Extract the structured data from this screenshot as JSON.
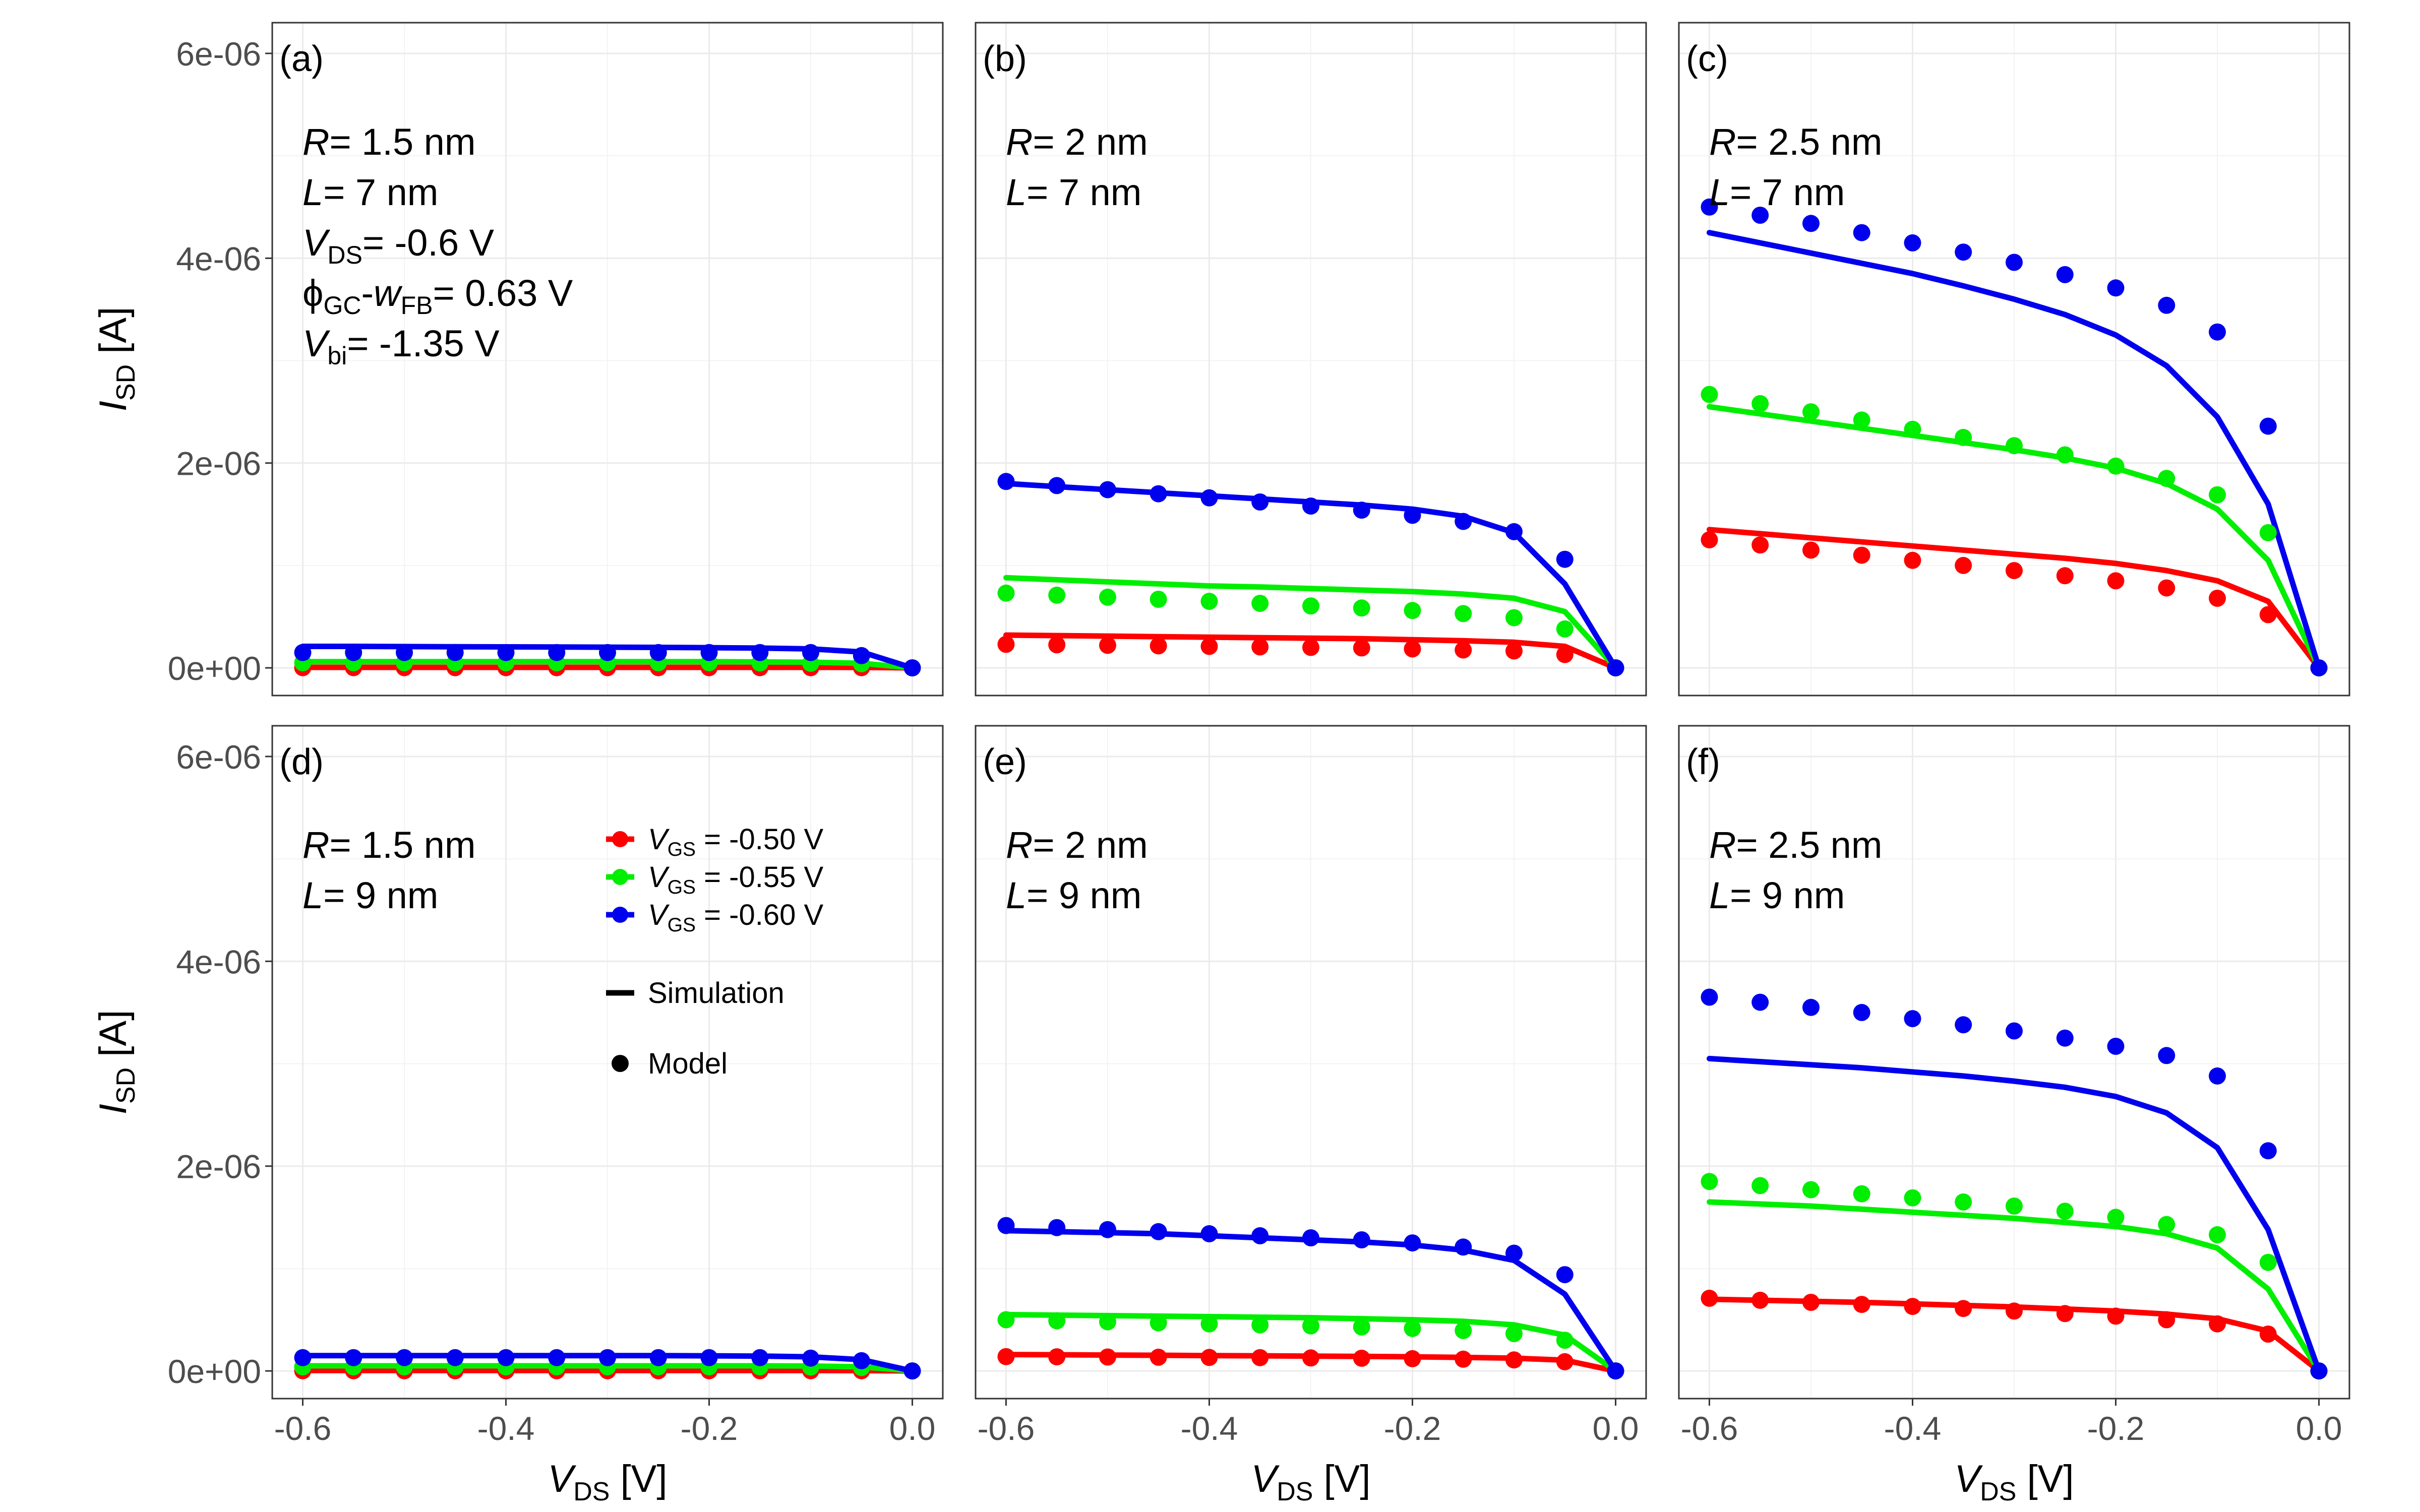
{
  "figure": {
    "y_axis_label": {
      "main": "I",
      "sub": "SD",
      "rest": " [A]"
    },
    "x_axis_label": {
      "main": "V",
      "sub": "DS",
      "rest": " [V]"
    },
    "y_ticks": [
      {
        "value": 0,
        "label": "0e+00"
      },
      {
        "value": 2e-06,
        "label": "2e-06"
      },
      {
        "value": 4e-06,
        "label": "4e-06"
      },
      {
        "value": 6e-06,
        "label": "6e-06"
      }
    ],
    "x_ticks": [
      {
        "value": -0.6,
        "label": "-0.6"
      },
      {
        "value": -0.4,
        "label": "-0.4"
      },
      {
        "value": -0.2,
        "label": "-0.2"
      },
      {
        "value": 0.0,
        "label": "0.0"
      }
    ],
    "legend": {
      "entries": [
        {
          "series": "vgs_050",
          "label": "= -0.50 V"
        },
        {
          "series": "vgs_055",
          "label": "= -0.55 V"
        },
        {
          "series": "vgs_060",
          "label": "= -0.60 V"
        }
      ],
      "entry_var": {
        "main": "V",
        "sub": "GS"
      },
      "simulation_label": "Simulation",
      "model_label": "Model"
    },
    "colors": {
      "vgs_050": "#ff0000",
      "vgs_055": "#00ee00",
      "vgs_060": "#0000ee",
      "grid": "#ebebeb",
      "frame": "#333333",
      "tick_text": "#4d4d4d"
    }
  },
  "chart_data": {
    "type": "line",
    "xlim": [
      -0.63,
      0.03
    ],
    "ylim": [
      -2.7e-07,
      6.3e-06
    ],
    "x": [
      -0.6,
      -0.55,
      -0.5,
      -0.45,
      -0.4,
      -0.35,
      -0.3,
      -0.25,
      -0.2,
      -0.15,
      -0.1,
      -0.05,
      0.0
    ],
    "grid": true,
    "legend_position": "inside panel (d), upper-right",
    "panels": [
      {
        "tag": "(a)",
        "params": [
          {
            "main": "R",
            "sub": "",
            "rest": "= 1.5 nm"
          },
          {
            "main": "L",
            "sub": "",
            "rest": "= 7 nm"
          },
          {
            "main": "V",
            "sub": "DS",
            "rest": "= -0.6 V"
          },
          {
            "main": "ϕ",
            "sub": "GC",
            "mid": "-w",
            "sub2": "FB",
            "rest": "= 0.63 V"
          },
          {
            "main": "V",
            "sub": "bi",
            "rest": "= -1.35 V"
          }
        ],
        "series": [
          {
            "key": "vgs_050",
            "name": "V_GS = -0.50 V",
            "simulation": [
              5e-09,
              5e-09,
              5e-09,
              5e-09,
              5e-09,
              5e-09,
              5e-09,
              5e-09,
              5e-09,
              5e-09,
              5e-09,
              4e-09,
              0
            ],
            "model": [
              2e-09,
              2e-09,
              2e-09,
              2e-09,
              2e-09,
              2e-09,
              2e-09,
              2e-09,
              2e-09,
              2e-09,
              2e-09,
              2e-09,
              0
            ]
          },
          {
            "key": "vgs_055",
            "name": "V_GS = -0.55 V",
            "simulation": [
              6e-08,
              6e-08,
              6e-08,
              6e-08,
              6e-08,
              6e-08,
              6e-08,
              6e-08,
              6e-08,
              5.8e-08,
              5.5e-08,
              4.5e-08,
              0
            ],
            "model": [
              5e-08,
              5e-08,
              5e-08,
              5e-08,
              5e-08,
              5e-08,
              5e-08,
              5e-08,
              5e-08,
              4.8e-08,
              4.5e-08,
              4e-08,
              0
            ]
          },
          {
            "key": "vgs_060",
            "name": "V_GS = -0.60 V",
            "simulation": [
              2.1e-07,
              2.1e-07,
              2.08e-07,
              2.06e-07,
              2.05e-07,
              2.04e-07,
              2.02e-07,
              2e-07,
              1.97e-07,
              1.93e-07,
              1.85e-07,
              1.55e-07,
              0
            ],
            "model": [
              1.5e-07,
              1.5e-07,
              1.5e-07,
              1.5e-07,
              1.5e-07,
              1.5e-07,
              1.5e-07,
              1.5e-07,
              1.5e-07,
              1.5e-07,
              1.5e-07,
              1.2e-07,
              0
            ]
          }
        ]
      },
      {
        "tag": "(b)",
        "params": [
          {
            "main": "R",
            "sub": "",
            "rest": "= 2 nm"
          },
          {
            "main": "L",
            "sub": "",
            "rest": "= 7 nm"
          }
        ],
        "series": [
          {
            "key": "vgs_050",
            "name": "V_GS = -0.50 V",
            "simulation": [
              3.2e-07,
              3.15e-07,
              3.1e-07,
              3.05e-07,
              3e-07,
              2.95e-07,
              2.9e-07,
              2.85e-07,
              2.75e-07,
              2.65e-07,
              2.5e-07,
              2.1e-07,
              0
            ],
            "model": [
              2.3e-07,
              2.25e-07,
              2.2e-07,
              2.15e-07,
              2.1e-07,
              2.05e-07,
              2e-07,
              1.95e-07,
              1.85e-07,
              1.75e-07,
              1.65e-07,
              1.3e-07,
              0
            ]
          },
          {
            "key": "vgs_055",
            "name": "V_GS = -0.55 V",
            "simulation": [
              8.8e-07,
              8.6e-07,
              8.4e-07,
              8.2e-07,
              8e-07,
              7.9e-07,
              7.75e-07,
              7.6e-07,
              7.45e-07,
              7.2e-07,
              6.8e-07,
              5.5e-07,
              0
            ],
            "model": [
              7.3e-07,
              7.1e-07,
              6.9e-07,
              6.7e-07,
              6.5e-07,
              6.3e-07,
              6.05e-07,
              5.85e-07,
              5.6e-07,
              5.3e-07,
              4.9e-07,
              3.8e-07,
              0
            ]
          },
          {
            "key": "vgs_060",
            "name": "V_GS = -0.60 V",
            "simulation": [
              1.8e-06,
              1.77e-06,
              1.74e-06,
              1.71e-06,
              1.68e-06,
              1.65e-06,
              1.62e-06,
              1.59e-06,
              1.55e-06,
              1.48e-06,
              1.32e-06,
              8.2e-07,
              0
            ],
            "model": [
              1.82e-06,
              1.78e-06,
              1.74e-06,
              1.7e-06,
              1.66e-06,
              1.62e-06,
              1.58e-06,
              1.54e-06,
              1.49e-06,
              1.43e-06,
              1.33e-06,
              1.06e-06,
              0
            ]
          }
        ]
      },
      {
        "tag": "(c)",
        "params": [
          {
            "main": "R",
            "sub": "",
            "rest": "= 2.5 nm"
          },
          {
            "main": "L",
            "sub": "",
            "rest": "= 7 nm"
          }
        ],
        "series": [
          {
            "key": "vgs_050",
            "name": "V_GS = -0.50 V",
            "simulation": [
              1.35e-06,
              1.31e-06,
              1.27e-06,
              1.23e-06,
              1.19e-06,
              1.15e-06,
              1.11e-06,
              1.07e-06,
              1.02e-06,
              9.5e-07,
              8.5e-07,
              6.5e-07,
              0
            ],
            "model": [
              1.25e-06,
              1.2e-06,
              1.15e-06,
              1.1e-06,
              1.05e-06,
              1e-06,
              9.5e-07,
              9e-07,
              8.5e-07,
              7.8e-07,
              6.8e-07,
              5.2e-07,
              0
            ]
          },
          {
            "key": "vgs_055",
            "name": "V_GS = -0.55 V",
            "simulation": [
              2.55e-06,
              2.48e-06,
              2.41e-06,
              2.34e-06,
              2.27e-06,
              2.2e-06,
              2.13e-06,
              2.05e-06,
              1.95e-06,
              1.8e-06,
              1.55e-06,
              1.05e-06,
              0
            ],
            "model": [
              2.67e-06,
              2.58e-06,
              2.5e-06,
              2.42e-06,
              2.33e-06,
              2.25e-06,
              2.17e-06,
              2.08e-06,
              1.97e-06,
              1.85e-06,
              1.69e-06,
              1.32e-06,
              0
            ]
          },
          {
            "key": "vgs_060",
            "name": "V_GS = -0.60 V",
            "simulation": [
              4.25e-06,
              4.15e-06,
              4.05e-06,
              3.95e-06,
              3.85e-06,
              3.73e-06,
              3.6e-06,
              3.45e-06,
              3.25e-06,
              2.95e-06,
              2.45e-06,
              1.6e-06,
              0
            ],
            "model": [
              4.5e-06,
              4.42e-06,
              4.34e-06,
              4.25e-06,
              4.15e-06,
              4.06e-06,
              3.96e-06,
              3.84e-06,
              3.71e-06,
              3.54e-06,
              3.28e-06,
              2.36e-06,
              0
            ]
          }
        ]
      },
      {
        "tag": "(d)",
        "params": [
          {
            "main": "R",
            "sub": "",
            "rest": "= 1.5 nm"
          },
          {
            "main": "L",
            "sub": "",
            "rest": "= 9 nm"
          }
        ],
        "series": [
          {
            "key": "vgs_050",
            "name": "V_GS = -0.50 V",
            "simulation": [
              4e-09,
              4e-09,
              4e-09,
              4e-09,
              4e-09,
              4e-09,
              4e-09,
              4e-09,
              4e-09,
              4e-09,
              4e-09,
              3e-09,
              0
            ],
            "model": [
              2e-09,
              2e-09,
              2e-09,
              2e-09,
              2e-09,
              2e-09,
              2e-09,
              2e-09,
              2e-09,
              2e-09,
              2e-09,
              2e-09,
              0
            ]
          },
          {
            "key": "vgs_055",
            "name": "V_GS = -0.55 V",
            "simulation": [
              5e-08,
              5e-08,
              5e-08,
              5e-08,
              5e-08,
              5e-08,
              5e-08,
              5e-08,
              5e-08,
              5e-08,
              4.8e-08,
              4e-08,
              0
            ],
            "model": [
              4e-08,
              4e-08,
              4e-08,
              4e-08,
              4e-08,
              4e-08,
              4e-08,
              4e-08,
              4e-08,
              4e-08,
              3.8e-08,
              3.3e-08,
              0
            ]
          },
          {
            "key": "vgs_060",
            "name": "V_GS = -0.60 V",
            "simulation": [
              1.5e-07,
              1.5e-07,
              1.5e-07,
              1.5e-07,
              1.5e-07,
              1.5e-07,
              1.5e-07,
              1.5e-07,
              1.48e-07,
              1.45e-07,
              1.38e-07,
              1.1e-07,
              0
            ],
            "model": [
              1.3e-07,
              1.3e-07,
              1.3e-07,
              1.3e-07,
              1.3e-07,
              1.3e-07,
              1.3e-07,
              1.3e-07,
              1.3e-07,
              1.3e-07,
              1.25e-07,
              1e-07,
              0
            ]
          }
        ]
      },
      {
        "tag": "(e)",
        "params": [
          {
            "main": "R",
            "sub": "",
            "rest": "= 2 nm"
          },
          {
            "main": "L",
            "sub": "",
            "rest": "= 9 nm"
          }
        ],
        "series": [
          {
            "key": "vgs_050",
            "name": "V_GS = -0.50 V",
            "simulation": [
              1.6e-07,
              1.58e-07,
              1.55e-07,
              1.53e-07,
              1.5e-07,
              1.48e-07,
              1.45e-07,
              1.42e-07,
              1.38e-07,
              1.32e-07,
              1.25e-07,
              1.05e-07,
              0
            ],
            "model": [
              1.4e-07,
              1.38e-07,
              1.36e-07,
              1.34e-07,
              1.32e-07,
              1.3e-07,
              1.27e-07,
              1.24e-07,
              1.2e-07,
              1.15e-07,
              1.08e-07,
              9e-08,
              0
            ]
          },
          {
            "key": "vgs_055",
            "name": "V_GS = -0.55 V",
            "simulation": [
              5.5e-07,
              5.45e-07,
              5.4e-07,
              5.35e-07,
              5.3e-07,
              5.25e-07,
              5.2e-07,
              5.1e-07,
              5e-07,
              4.85e-07,
              4.5e-07,
              3.5e-07,
              0
            ],
            "model": [
              5e-07,
              4.9e-07,
              4.8e-07,
              4.7e-07,
              4.6e-07,
              4.5e-07,
              4.4e-07,
              4.3e-07,
              4.15e-07,
              3.95e-07,
              3.65e-07,
              3e-07,
              0
            ]
          },
          {
            "key": "vgs_060",
            "name": "V_GS = -0.60 V",
            "simulation": [
              1.37e-06,
              1.36e-06,
              1.35e-06,
              1.34e-06,
              1.32e-06,
              1.3e-06,
              1.28e-06,
              1.26e-06,
              1.23e-06,
              1.18e-06,
              1.08e-06,
              7.5e-07,
              0
            ],
            "model": [
              1.42e-06,
              1.4e-06,
              1.38e-06,
              1.36e-06,
              1.34e-06,
              1.32e-06,
              1.3e-06,
              1.28e-06,
              1.25e-06,
              1.21e-06,
              1.15e-06,
              9.4e-07,
              0
            ]
          }
        ]
      },
      {
        "tag": "(f)",
        "params": [
          {
            "main": "R",
            "sub": "",
            "rest": "= 2.5 nm"
          },
          {
            "main": "L",
            "sub": "",
            "rest": "= 9 nm"
          }
        ],
        "series": [
          {
            "key": "vgs_050",
            "name": "V_GS = -0.50 V",
            "simulation": [
              7e-07,
              6.9e-07,
              6.8e-07,
              6.7e-07,
              6.55e-07,
              6.4e-07,
              6.25e-07,
              6.05e-07,
              5.85e-07,
              5.55e-07,
              5.1e-07,
              3.9e-07,
              0
            ],
            "model": [
              7.1e-07,
              6.9e-07,
              6.7e-07,
              6.5e-07,
              6.3e-07,
              6.1e-07,
              5.85e-07,
              5.6e-07,
              5.35e-07,
              5e-07,
              4.6e-07,
              3.6e-07,
              0
            ]
          },
          {
            "key": "vgs_055",
            "name": "V_GS = -0.55 V",
            "simulation": [
              1.65e-06,
              1.63e-06,
              1.61e-06,
              1.58e-06,
              1.55e-06,
              1.52e-06,
              1.49e-06,
              1.45e-06,
              1.41e-06,
              1.34e-06,
              1.2e-06,
              8e-07,
              0
            ],
            "model": [
              1.85e-06,
              1.81e-06,
              1.77e-06,
              1.73e-06,
              1.69e-06,
              1.65e-06,
              1.61e-06,
              1.56e-06,
              1.5e-06,
              1.43e-06,
              1.33e-06,
              1.06e-06,
              0
            ]
          },
          {
            "key": "vgs_060",
            "name": "V_GS = -0.60 V",
            "simulation": [
              3.05e-06,
              3.02e-06,
              2.99e-06,
              2.96e-06,
              2.92e-06,
              2.88e-06,
              2.83e-06,
              2.77e-06,
              2.68e-06,
              2.52e-06,
              2.18e-06,
              1.38e-06,
              0
            ],
            "model": [
              3.65e-06,
              3.6e-06,
              3.55e-06,
              3.5e-06,
              3.44e-06,
              3.38e-06,
              3.32e-06,
              3.25e-06,
              3.17e-06,
              3.08e-06,
              2.88e-06,
              2.15e-06,
              0
            ]
          }
        ]
      }
    ]
  }
}
